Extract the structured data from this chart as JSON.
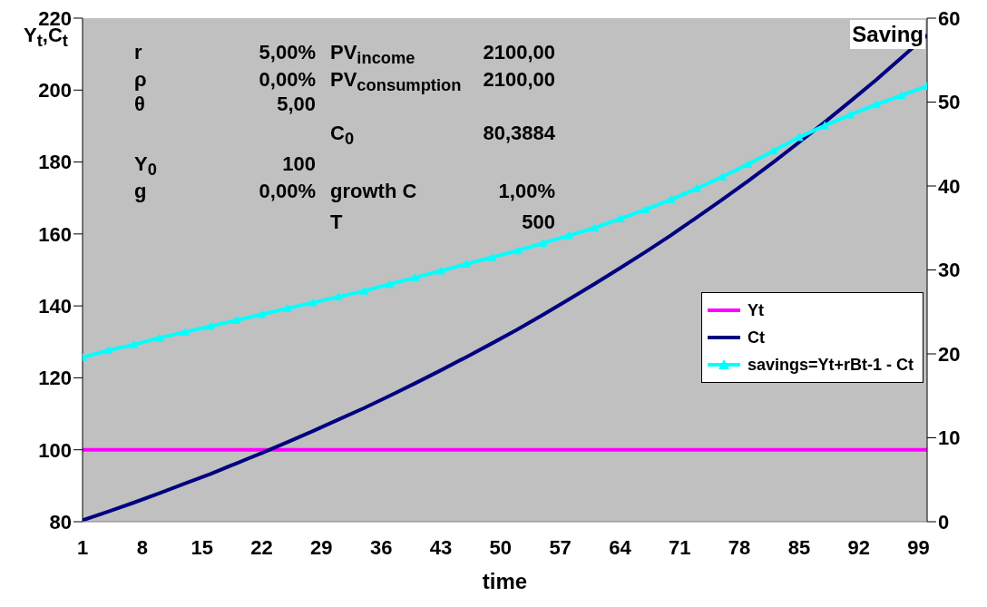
{
  "chart_data": {
    "type": "line",
    "xlabel": "time",
    "ylabel": "Y$_{t}$,C$_{t}$",
    "y2label": "Saving",
    "xlim": [
      1,
      100
    ],
    "xticks": [
      1,
      8,
      15,
      22,
      29,
      36,
      43,
      50,
      57,
      64,
      71,
      78,
      85,
      92,
      99
    ],
    "ylim": [
      80,
      220
    ],
    "yticks": [
      80,
      100,
      120,
      140,
      160,
      180,
      200,
      220
    ],
    "y2lim": [
      0,
      60
    ],
    "y2ticks": [
      0,
      10,
      20,
      30,
      40,
      50,
      60
    ],
    "legend": "right",
    "series": [
      {
        "name": "Yt",
        "color": "#ff00ff",
        "marker": "none",
        "x": [
          1,
          100
        ],
        "values": [
          100,
          100
        ]
      },
      {
        "name": "Ct",
        "color": "#000080",
        "marker": "none",
        "x": [
          1,
          4,
          7,
          10,
          13,
          16,
          19,
          22,
          25,
          28,
          31,
          34,
          37,
          40,
          43,
          46,
          49,
          52,
          55,
          58,
          61,
          64,
          67,
          70,
          73,
          76,
          79,
          82,
          85,
          88,
          91,
          94,
          97,
          100
        ],
        "values": [
          80.4,
          82.8,
          85.3,
          87.9,
          90.6,
          93.3,
          96.2,
          99.1,
          102.1,
          105.2,
          108.4,
          111.6,
          115.0,
          118.5,
          122.1,
          125.8,
          129.6,
          133.5,
          137.6,
          141.8,
          146.1,
          150.5,
          155.0,
          159.7,
          164.6,
          169.6,
          174.7,
          180.0,
          185.5,
          191.1,
          196.9,
          202.8,
          209.0,
          215.3
        ]
      },
      {
        "name": "savings=Yt+rBt-1 - Ct",
        "color": "#00ffff",
        "marker": "triangle",
        "axis": "y2",
        "x": [
          1,
          4,
          7,
          10,
          13,
          16,
          19,
          22,
          25,
          28,
          31,
          34,
          37,
          40,
          43,
          46,
          49,
          52,
          55,
          58,
          61,
          64,
          67,
          70,
          73,
          76,
          79,
          82,
          85,
          88,
          91,
          94,
          97,
          100
        ],
        "values": [
          19.6,
          20.4,
          21.1,
          21.9,
          22.6,
          23.3,
          24.0,
          24.7,
          25.4,
          26.1,
          26.8,
          27.5,
          28.3,
          29.1,
          29.9,
          30.7,
          31.5,
          32.3,
          33.2,
          34.1,
          35.0,
          36.1,
          37.2,
          38.4,
          39.7,
          41.1,
          42.6,
          44.2,
          45.8,
          47.2,
          48.5,
          49.7,
          50.8,
          51.9
        ]
      }
    ],
    "annotations": [
      "r",
      "5,00%",
      "ρ",
      "0,00%",
      "θ",
      "5,00",
      "Y$_{0}$",
      "100",
      "g",
      "0,00%",
      "PV$_{income}$",
      "2100,00",
      "PV$_{consumption}$",
      "2100,00",
      "C$_{0}$",
      "80,3884",
      "growth C",
      "1,00%",
      "T",
      "500"
    ]
  }
}
